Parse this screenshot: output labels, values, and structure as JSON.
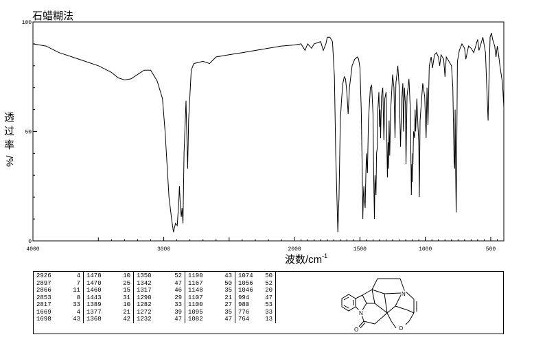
{
  "chart_data": {
    "type": "line",
    "title": "石蜡糊法",
    "xlabel": "波数/cm",
    "xlabel_sup": "-1",
    "ylabel": "透过率",
    "ylabel_unit": "%/",
    "xlim": [
      4000,
      400
    ],
    "ylim": [
      0,
      100
    ],
    "x_ticks": [
      4000,
      3000,
      2000,
      1500,
      1000,
      500
    ],
    "x_tick_labels": [
      "4000",
      "3000",
      "2000",
      "1500",
      "1000",
      "500"
    ],
    "y_ticks": [
      0,
      50,
      100
    ],
    "y_tick_labels": [
      "0",
      "50",
      "100"
    ],
    "spectrum": [
      [
        4000,
        90
      ],
      [
        3900,
        89
      ],
      [
        3800,
        86
      ],
      [
        3700,
        84
      ],
      [
        3600,
        82
      ],
      [
        3500,
        80
      ],
      [
        3400,
        77
      ],
      [
        3350,
        74.5
      ],
      [
        3300,
        73.5
      ],
      [
        3250,
        74
      ],
      [
        3200,
        76
      ],
      [
        3150,
        78
      ],
      [
        3100,
        78
      ],
      [
        3050,
        73
      ],
      [
        3010,
        65
      ],
      [
        2990,
        50
      ],
      [
        2960,
        20
      ],
      [
        2940,
        10
      ],
      [
        2926,
        4
      ],
      [
        2910,
        8
      ],
      [
        2897,
        7
      ],
      [
        2885,
        18
      ],
      [
        2880,
        25
      ],
      [
        2872,
        15
      ],
      [
        2866,
        11
      ],
      [
        2860,
        15
      ],
      [
        2853,
        8
      ],
      [
        2845,
        40
      ],
      [
        2830,
        64
      ],
      [
        2817,
        33
      ],
      [
        2810,
        55
      ],
      [
        2790,
        78
      ],
      [
        2770,
        81
      ],
      [
        2700,
        82
      ],
      [
        2650,
        81
      ],
      [
        2600,
        84
      ],
      [
        2500,
        85
      ],
      [
        2400,
        86
      ],
      [
        2300,
        87
      ],
      [
        2200,
        88
      ],
      [
        2100,
        89
      ],
      [
        2000,
        89.5
      ],
      [
        1950,
        90
      ],
      [
        1920,
        87
      ],
      [
        1900,
        90
      ],
      [
        1870,
        88
      ],
      [
        1850,
        90
      ],
      [
        1800,
        91
      ],
      [
        1780,
        87
      ],
      [
        1760,
        90
      ],
      [
        1750,
        93
      ],
      [
        1730,
        93
      ],
      [
        1710,
        91
      ],
      [
        1695,
        75
      ],
      [
        1685,
        40
      ],
      [
        1669,
        4
      ],
      [
        1660,
        20
      ],
      [
        1650,
        55
      ],
      [
        1640,
        65
      ],
      [
        1630,
        72
      ],
      [
        1620,
        75
      ],
      [
        1610,
        74
      ],
      [
        1600,
        68
      ],
      [
        1590,
        58
      ],
      [
        1580,
        70
      ],
      [
        1560,
        80
      ],
      [
        1540,
        83
      ],
      [
        1520,
        84
      ],
      [
        1510,
        83
      ],
      [
        1500,
        79
      ],
      [
        1490,
        60
      ],
      [
        1482,
        30
      ],
      [
        1478,
        10
      ],
      [
        1474,
        20
      ],
      [
        1470,
        25
      ],
      [
        1465,
        18
      ],
      [
        1460,
        15
      ],
      [
        1455,
        30
      ],
      [
        1450,
        40
      ],
      [
        1443,
        31
      ],
      [
        1435,
        55
      ],
      [
        1420,
        70
      ],
      [
        1410,
        71
      ],
      [
        1400,
        58
      ],
      [
        1395,
        30
      ],
      [
        1389,
        10
      ],
      [
        1385,
        30
      ],
      [
        1377,
        21
      ],
      [
        1373,
        40
      ],
      [
        1368,
        42
      ],
      [
        1363,
        60
      ],
      [
        1355,
        68
      ],
      [
        1350,
        52
      ],
      [
        1346,
        60
      ],
      [
        1342,
        47
      ],
      [
        1335,
        66
      ],
      [
        1325,
        70
      ],
      [
        1317,
        46
      ],
      [
        1310,
        65
      ],
      [
        1300,
        68
      ],
      [
        1290,
        29
      ],
      [
        1285,
        45
      ],
      [
        1282,
        33
      ],
      [
        1277,
        55
      ],
      [
        1272,
        39
      ],
      [
        1265,
        60
      ],
      [
        1250,
        76
      ],
      [
        1240,
        70
      ],
      [
        1232,
        47
      ],
      [
        1225,
        72
      ],
      [
        1210,
        80
      ],
      [
        1200,
        70
      ],
      [
        1190,
        43
      ],
      [
        1180,
        65
      ],
      [
        1172,
        72
      ],
      [
        1167,
        50
      ],
      [
        1160,
        70
      ],
      [
        1152,
        62
      ],
      [
        1148,
        35
      ],
      [
        1140,
        66
      ],
      [
        1125,
        74
      ],
      [
        1115,
        60
      ],
      [
        1107,
        21
      ],
      [
        1103,
        35
      ],
      [
        1100,
        27
      ],
      [
        1097,
        40
      ],
      [
        1095,
        35
      ],
      [
        1090,
        50
      ],
      [
        1082,
        47
      ],
      [
        1078,
        60
      ],
      [
        1074,
        50
      ],
      [
        1065,
        65
      ],
      [
        1056,
        52
      ],
      [
        1050,
        45
      ],
      [
        1046,
        20
      ],
      [
        1040,
        55
      ],
      [
        1020,
        72
      ],
      [
        1005,
        66
      ],
      [
        994,
        47
      ],
      [
        987,
        70
      ],
      [
        980,
        53
      ],
      [
        970,
        80
      ],
      [
        955,
        84
      ],
      [
        945,
        79
      ],
      [
        930,
        85
      ],
      [
        915,
        86
      ],
      [
        900,
        84
      ],
      [
        890,
        80
      ],
      [
        880,
        85
      ],
      [
        860,
        83
      ],
      [
        850,
        75
      ],
      [
        840,
        84
      ],
      [
        820,
        82
      ],
      [
        800,
        80
      ],
      [
        790,
        70
      ],
      [
        780,
        36
      ],
      [
        776,
        33
      ],
      [
        772,
        60
      ],
      [
        768,
        30
      ],
      [
        764,
        13
      ],
      [
        760,
        40
      ],
      [
        755,
        82
      ],
      [
        740,
        87
      ],
      [
        720,
        90
      ],
      [
        700,
        88
      ],
      [
        690,
        83
      ],
      [
        680,
        86
      ],
      [
        670,
        89
      ],
      [
        650,
        88
      ],
      [
        630,
        86
      ],
      [
        610,
        90
      ],
      [
        600,
        92
      ],
      [
        590,
        87
      ],
      [
        580,
        89
      ],
      [
        560,
        93
      ],
      [
        540,
        86
      ],
      [
        530,
        70
      ],
      [
        520,
        55
      ],
      [
        515,
        70
      ],
      [
        505,
        93
      ],
      [
        495,
        95
      ],
      [
        485,
        92
      ],
      [
        470,
        89
      ],
      [
        460,
        84
      ],
      [
        450,
        89
      ],
      [
        440,
        85
      ],
      [
        430,
        80
      ],
      [
        410,
        72
      ],
      [
        400,
        61
      ]
    ]
  },
  "peak_table": {
    "columns": [
      [
        [
          "2926",
          "4"
        ],
        [
          "2897",
          "7"
        ],
        [
          "2866",
          "11"
        ],
        [
          "2853",
          "8"
        ],
        [
          "2817",
          "33"
        ],
        [
          "1669",
          "4"
        ],
        [
          "1698",
          "43"
        ]
      ],
      [
        [
          "1478",
          "10"
        ],
        [
          "1470",
          "25"
        ],
        [
          "1460",
          "15"
        ],
        [
          "1443",
          "31"
        ],
        [
          "1389",
          "10"
        ],
        [
          "1377",
          "21"
        ],
        [
          "1368",
          "42"
        ]
      ],
      [
        [
          "1350",
          "52"
        ],
        [
          "1342",
          "47"
        ],
        [
          "1317",
          "46"
        ],
        [
          "1290",
          "29"
        ],
        [
          "1282",
          "33"
        ],
        [
          "1272",
          "39"
        ],
        [
          "1232",
          "47"
        ]
      ],
      [
        [
          "1190",
          "43"
        ],
        [
          "1167",
          "50"
        ],
        [
          "1148",
          "35"
        ],
        [
          "1107",
          "21"
        ],
        [
          "1100",
          "27"
        ],
        [
          "1095",
          "35"
        ],
        [
          "1082",
          "47"
        ]
      ],
      [
        [
          "1074",
          "50"
        ],
        [
          "1056",
          "52"
        ],
        [
          "1046",
          "20"
        ],
        [
          "994",
          "47"
        ],
        [
          "980",
          "53"
        ],
        [
          "776",
          "33"
        ],
        [
          "764",
          "13"
        ]
      ]
    ]
  },
  "structure": {
    "n1": "N",
    "n2": "N",
    "o1": "O",
    "o2": "O"
  }
}
